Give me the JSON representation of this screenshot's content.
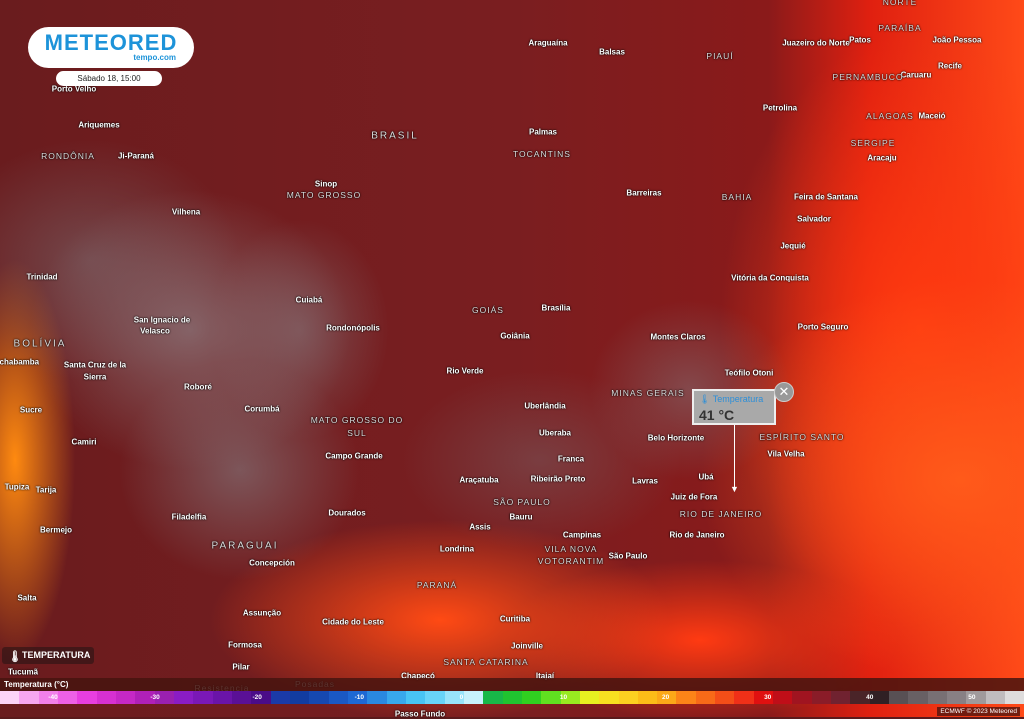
{
  "brand": {
    "logo": "METEORED",
    "sub": "tempo.com",
    "color": "#1d93d9"
  },
  "timestamp": "Sábado 18, 15:00",
  "tooltip": {
    "title": "Temperatura",
    "value": "41 °C",
    "close_icon": "close-icon"
  },
  "layer_button": {
    "label": "TEMPERATURA",
    "icon": "thermometer-icon"
  },
  "legend": {
    "title": "Temperatura (°C)",
    "ticks": [
      "-40",
      "-30",
      "-20",
      "-10",
      "0",
      "10",
      "20",
      "30",
      "40",
      "50"
    ],
    "colors": [
      "#fcd3f7",
      "#f7a6f0",
      "#f280ea",
      "#ee60e6",
      "#e83ee0",
      "#d730d2",
      "#c628c6",
      "#b020b8",
      "#9a20b0",
      "#8a1cc4",
      "#7a18b6",
      "#6a14a8",
      "#5a1096",
      "#4a0c88",
      "#1a3aa8",
      "#123ca0",
      "#1648b0",
      "#1a58c4",
      "#1e68d4",
      "#2a88e0",
      "#38a8ec",
      "#48c4f4",
      "#68d4f8",
      "#98e4fa",
      "#c8f2fc",
      "#18b848",
      "#20c430",
      "#30d020",
      "#60e020",
      "#98ea20",
      "#e8f020",
      "#f8e020",
      "#fcd020",
      "#fcbc18",
      "#fca818",
      "#fc8418",
      "#f86a18",
      "#f44e18",
      "#f03018",
      "#e01010",
      "#c00e18",
      "#a01420",
      "#8a1c28",
      "#702230",
      "#4a2428",
      "#302024",
      "#585054",
      "#686064",
      "#787074",
      "#888084",
      "#a09a9c",
      "#c0bcbe",
      "#dedcdc"
    ]
  },
  "credit": "ECMWF © 2023 Meteored",
  "places": [
    {
      "name": "NORTE",
      "type": "region"
    },
    {
      "name": "Araguaína"
    },
    {
      "name": "Balsas"
    },
    {
      "name": "PIAUÍ",
      "type": "region"
    },
    {
      "name": "Juazeiro do Norte"
    },
    {
      "name": "Patos"
    },
    {
      "name": "PARAÍBA",
      "type": "region"
    },
    {
      "name": "João Pessoa"
    },
    {
      "name": "Caruaru"
    },
    {
      "name": "PERNAMBUCO",
      "type": "region"
    },
    {
      "name": "Recife"
    },
    {
      "name": "Porto Velho"
    },
    {
      "name": "Petrolina"
    },
    {
      "name": "ALAGOAS",
      "type": "region"
    },
    {
      "name": "Maceió"
    },
    {
      "name": "Ariquemes"
    },
    {
      "name": "BRASIL",
      "type": "country"
    },
    {
      "name": "Palmas"
    },
    {
      "name": "RONDÔNIA",
      "type": "region"
    },
    {
      "name": "Ji-Paraná"
    },
    {
      "name": "SERGIPE",
      "type": "region"
    },
    {
      "name": "Aracaju"
    },
    {
      "name": "TOCANTINS",
      "type": "region"
    },
    {
      "name": "Sinop"
    },
    {
      "name": "MATO GROSSO",
      "type": "region"
    },
    {
      "name": "Barreiras"
    },
    {
      "name": "BAHIA",
      "type": "region"
    },
    {
      "name": "Feira de Santana"
    },
    {
      "name": "Vilhena"
    },
    {
      "name": "Salvador"
    },
    {
      "name": "Jequié"
    },
    {
      "name": "Trinidad"
    },
    {
      "name": "Vitória da Conquista"
    },
    {
      "name": "Cuiabá"
    },
    {
      "name": "GOIÁS",
      "type": "region"
    },
    {
      "name": "Brasília"
    },
    {
      "name": "San Ignacio de"
    },
    {
      "name": "Velasco"
    },
    {
      "name": "Rondonópolis"
    },
    {
      "name": "Goiânia"
    },
    {
      "name": "Porto Seguro"
    },
    {
      "name": "BOLÍVIA",
      "type": "country"
    },
    {
      "name": "Montes Claros"
    },
    {
      "name": "Santa Cruz de la"
    },
    {
      "name": "Sierra"
    },
    {
      "name": "Rio Verde"
    },
    {
      "name": "Teófilo Otoni"
    },
    {
      "name": "Roboré"
    },
    {
      "name": "MINAS GERAIS",
      "type": "region"
    },
    {
      "name": "Uberlândia"
    },
    {
      "name": "Corumbá"
    },
    {
      "name": "Sucre"
    },
    {
      "name": "MATO GROSSO DO",
      "type": "region"
    },
    {
      "name": "SUL",
      "type": "region"
    },
    {
      "name": "ESPÍRITO SANTO",
      "type": "region"
    },
    {
      "name": "Belo Horizonte"
    },
    {
      "name": "Camiri"
    },
    {
      "name": "Uberaba"
    },
    {
      "name": "Vila Velha"
    },
    {
      "name": "Campo Grande"
    },
    {
      "name": "Franca"
    },
    {
      "name": "Ubá"
    },
    {
      "name": "Araçatuba"
    },
    {
      "name": "Ribeirão Preto"
    },
    {
      "name": "Lavras"
    },
    {
      "name": "Tupiza"
    },
    {
      "name": "Tarija"
    },
    {
      "name": "SÃO PAULO",
      "type": "region"
    },
    {
      "name": "Juiz de Fora"
    },
    {
      "name": "Assis"
    },
    {
      "name": "Bauru"
    },
    {
      "name": "Dourados"
    },
    {
      "name": "RIO DE JANEIRO",
      "type": "region"
    },
    {
      "name": "Bermejo"
    },
    {
      "name": "Filadelfia"
    },
    {
      "name": "Campinas"
    },
    {
      "name": "Rio de Janeiro"
    },
    {
      "name": "PARAGUAI",
      "type": "country"
    },
    {
      "name": "VILA NOVA",
      "type": "region"
    },
    {
      "name": "VOTORANTIM",
      "type": "region"
    },
    {
      "name": "Concepción"
    },
    {
      "name": "Londrina"
    },
    {
      "name": "São Paulo"
    },
    {
      "name": "Salta"
    },
    {
      "name": "PARANÁ",
      "type": "region"
    },
    {
      "name": "Assunção"
    },
    {
      "name": "Cidade do Leste"
    },
    {
      "name": "Curitiba"
    },
    {
      "name": "Formosa"
    },
    {
      "name": "Joinville"
    },
    {
      "name": "Pilar"
    },
    {
      "name": "Chapecó"
    },
    {
      "name": "SANTA CATARINA",
      "type": "region"
    },
    {
      "name": "Itajaí"
    },
    {
      "name": "Resistencia",
      "type": "region"
    },
    {
      "name": "Posadas",
      "type": "region"
    },
    {
      "name": "Passo Fundo"
    },
    {
      "name": "Tucumã"
    },
    {
      "name": "Cochabamba"
    }
  ]
}
